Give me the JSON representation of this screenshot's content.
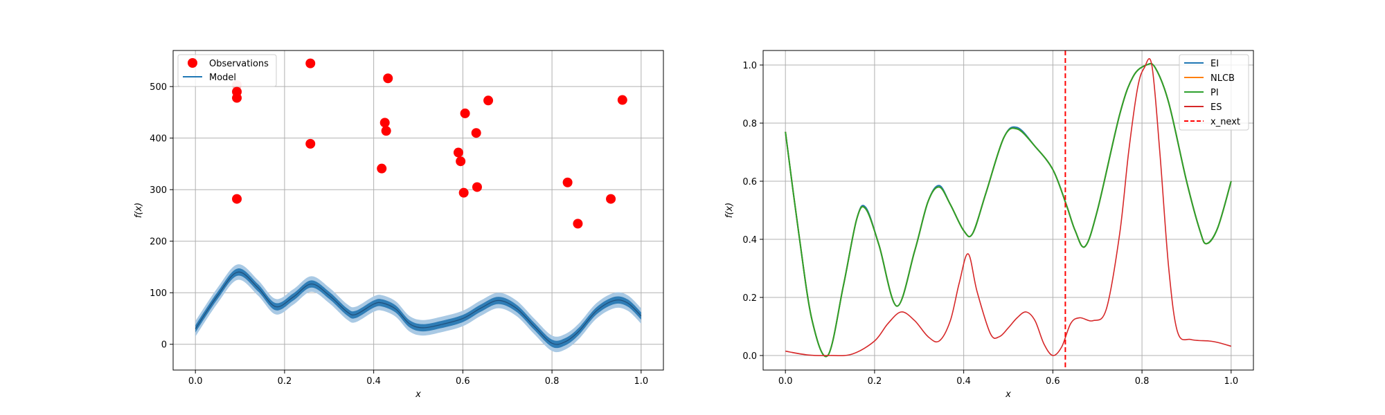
{
  "chart_data": [
    {
      "type": "scatter",
      "xlabel": "x",
      "ylabel": "f(x)",
      "xlim": [
        -0.05,
        1.05
      ],
      "ylim": [
        -50,
        570
      ],
      "x_ticks": [
        0.0,
        0.2,
        0.4,
        0.6,
        0.8,
        1.0
      ],
      "x_tick_labels": [
        "0.0",
        "0.2",
        "0.4",
        "0.6",
        "0.8",
        "1.0"
      ],
      "y_ticks": [
        0,
        100,
        200,
        300,
        400,
        500
      ],
      "y_tick_labels": [
        "0",
        "100",
        "200",
        "300",
        "400",
        "500"
      ],
      "grid": true,
      "legend_position": "top-left",
      "legend": [
        "Observations",
        "Model"
      ],
      "colors": {
        "observations": "#ff0000",
        "model": "#1f77b4",
        "band_inner": "#2f7db6",
        "band_outer": "#a9c9e4"
      },
      "observations": [
        {
          "x": 0.093,
          "y": 503
        },
        {
          "x": 0.093,
          "y": 490
        },
        {
          "x": 0.093,
          "y": 478
        },
        {
          "x": 0.093,
          "y": 282
        },
        {
          "x": 0.258,
          "y": 545
        },
        {
          "x": 0.258,
          "y": 389
        },
        {
          "x": 0.418,
          "y": 341
        },
        {
          "x": 0.425,
          "y": 430
        },
        {
          "x": 0.428,
          "y": 414
        },
        {
          "x": 0.432,
          "y": 516
        },
        {
          "x": 0.59,
          "y": 372
        },
        {
          "x": 0.595,
          "y": 355
        },
        {
          "x": 0.602,
          "y": 294
        },
        {
          "x": 0.605,
          "y": 448
        },
        {
          "x": 0.63,
          "y": 410
        },
        {
          "x": 0.632,
          "y": 305
        },
        {
          "x": 0.657,
          "y": 473
        },
        {
          "x": 0.835,
          "y": 314
        },
        {
          "x": 0.858,
          "y": 234
        },
        {
          "x": 0.932,
          "y": 282
        },
        {
          "x": 0.958,
          "y": 474
        }
      ],
      "model_mean": {
        "x": [
          0.0,
          0.05,
          0.095,
          0.14,
          0.18,
          0.22,
          0.26,
          0.3,
          0.34,
          0.36,
          0.4,
          0.42,
          0.45,
          0.48,
          0.51,
          0.55,
          0.6,
          0.64,
          0.68,
          0.72,
          0.76,
          0.8,
          0.83,
          0.86,
          0.9,
          0.94,
          0.97,
          1.0
        ],
        "y": [
          30,
          95,
          140,
          110,
          73,
          92,
          117,
          95,
          63,
          58,
          78,
          80,
          68,
          40,
          32,
          38,
          50,
          70,
          85,
          70,
          35,
          2,
          5,
          25,
          65,
          85,
          80,
          55
        ]
      },
      "band_inner_halfwidth": 7,
      "band_outer_halfwidth": 15
    },
    {
      "type": "line",
      "xlabel": "x",
      "ylabel": "f(x)",
      "xlim": [
        -0.05,
        1.05
      ],
      "ylim": [
        -0.05,
        1.05
      ],
      "x_ticks": [
        0.0,
        0.2,
        0.4,
        0.6,
        0.8,
        1.0
      ],
      "x_tick_labels": [
        "0.0",
        "0.2",
        "0.4",
        "0.6",
        "0.8",
        "1.0"
      ],
      "y_ticks": [
        0.0,
        0.2,
        0.4,
        0.6,
        0.8,
        1.0
      ],
      "y_tick_labels": [
        "0.0",
        "0.2",
        "0.4",
        "0.6",
        "0.8",
        "1.0"
      ],
      "grid": true,
      "legend_position": "top-right",
      "legend": [
        "EI",
        "NLCB",
        "PI",
        "ES",
        "x_next"
      ],
      "vline": {
        "name": "x_next",
        "x": 0.628,
        "color": "#ff0000"
      },
      "series": [
        {
          "name": "EI",
          "color": "#1f77b4",
          "x": [
            0.0,
            0.03,
            0.06,
            0.095,
            0.13,
            0.16,
            0.18,
            0.21,
            0.25,
            0.29,
            0.32,
            0.345,
            0.37,
            0.4,
            0.42,
            0.45,
            0.49,
            0.52,
            0.56,
            0.6,
            0.63,
            0.65,
            0.672,
            0.7,
            0.75,
            0.78,
            0.81,
            0.83,
            0.86,
            0.9,
            0.93,
            0.945,
            0.97,
            1.0
          ],
          "y": [
            0.77,
            0.42,
            0.12,
            0.0,
            0.24,
            0.47,
            0.51,
            0.38,
            0.17,
            0.36,
            0.53,
            0.585,
            0.52,
            0.43,
            0.42,
            0.56,
            0.75,
            0.785,
            0.72,
            0.64,
            0.52,
            0.43,
            0.375,
            0.5,
            0.83,
            0.96,
            1.0,
            0.99,
            0.87,
            0.6,
            0.43,
            0.385,
            0.44,
            0.6
          ]
        },
        {
          "name": "NLCB",
          "color": "#ff7f0e",
          "x": [
            0.0,
            0.03,
            0.06,
            0.095,
            0.13,
            0.16,
            0.18,
            0.21,
            0.25,
            0.29,
            0.32,
            0.345,
            0.37,
            0.4,
            0.42,
            0.45,
            0.49,
            0.52,
            0.56,
            0.6,
            0.63,
            0.65,
            0.672,
            0.7,
            0.75,
            0.78,
            0.81,
            0.83,
            0.86,
            0.9,
            0.93,
            0.945,
            0.97,
            1.0
          ],
          "y": [
            0.77,
            0.42,
            0.12,
            0.0,
            0.24,
            0.47,
            0.505,
            0.38,
            0.17,
            0.36,
            0.53,
            0.58,
            0.52,
            0.43,
            0.42,
            0.56,
            0.75,
            0.78,
            0.72,
            0.64,
            0.52,
            0.43,
            0.375,
            0.5,
            0.83,
            0.96,
            1.0,
            0.99,
            0.87,
            0.6,
            0.43,
            0.385,
            0.44,
            0.6
          ]
        },
        {
          "name": "PI",
          "color": "#2ca02c",
          "x": [
            0.0,
            0.03,
            0.06,
            0.095,
            0.13,
            0.16,
            0.18,
            0.21,
            0.25,
            0.29,
            0.32,
            0.345,
            0.37,
            0.4,
            0.42,
            0.45,
            0.49,
            0.52,
            0.56,
            0.6,
            0.63,
            0.65,
            0.672,
            0.7,
            0.75,
            0.78,
            0.81,
            0.83,
            0.86,
            0.9,
            0.93,
            0.945,
            0.97,
            1.0
          ],
          "y": [
            0.77,
            0.42,
            0.12,
            0.0,
            0.24,
            0.47,
            0.505,
            0.38,
            0.17,
            0.36,
            0.53,
            0.58,
            0.52,
            0.43,
            0.42,
            0.56,
            0.75,
            0.78,
            0.72,
            0.64,
            0.52,
            0.43,
            0.375,
            0.5,
            0.83,
            0.96,
            1.0,
            0.99,
            0.87,
            0.6,
            0.43,
            0.385,
            0.44,
            0.6
          ]
        },
        {
          "name": "ES",
          "color": "#d62728",
          "x": [
            0.0,
            0.05,
            0.1,
            0.15,
            0.2,
            0.23,
            0.26,
            0.29,
            0.32,
            0.345,
            0.37,
            0.39,
            0.41,
            0.43,
            0.46,
            0.48,
            0.5,
            0.52,
            0.54,
            0.56,
            0.58,
            0.6,
            0.62,
            0.64,
            0.66,
            0.69,
            0.72,
            0.75,
            0.77,
            0.79,
            0.805,
            0.822,
            0.84,
            0.86,
            0.88,
            0.91,
            0.95,
            0.97,
            1.0
          ],
          "y": [
            0.015,
            0.002,
            0.0,
            0.005,
            0.05,
            0.11,
            0.15,
            0.12,
            0.065,
            0.05,
            0.12,
            0.25,
            0.35,
            0.22,
            0.075,
            0.065,
            0.095,
            0.13,
            0.15,
            0.12,
            0.04,
            0.0,
            0.03,
            0.11,
            0.13,
            0.12,
            0.16,
            0.42,
            0.7,
            0.92,
            0.99,
            1.0,
            0.7,
            0.3,
            0.08,
            0.055,
            0.05,
            0.045,
            0.032
          ]
        }
      ]
    }
  ]
}
